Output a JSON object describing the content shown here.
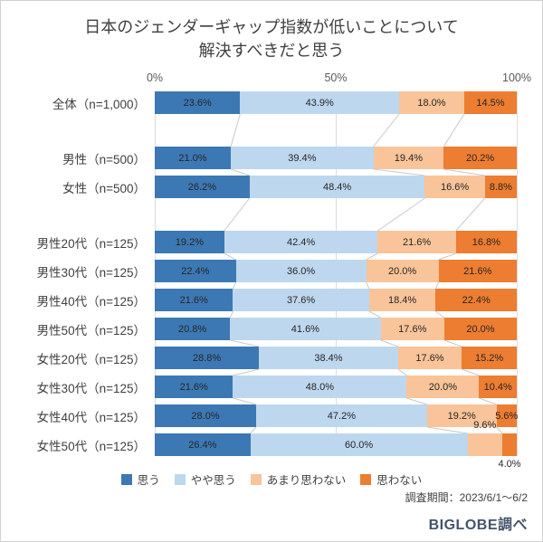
{
  "title": {
    "line1": "日本のジェンダーギャップ指数が低いことについて",
    "line2": "解決すべきだと思う"
  },
  "axis": {
    "ticks": [
      {
        "label": "0%",
        "pos": 0
      },
      {
        "label": "50%",
        "pos": 50
      },
      {
        "label": "100%",
        "pos": 100
      }
    ]
  },
  "chart_data": {
    "type": "bar",
    "stacked": true,
    "orientation": "horizontal",
    "xlim": [
      0,
      100
    ],
    "categories": [
      "全体（n=1,000）",
      "男性（n=500）",
      "女性（n=500）",
      "男性20代（n=125）",
      "男性30代（n=125）",
      "男性40代（n=125）",
      "男性50代（n=125）",
      "女性20代（n=125）",
      "女性30代（n=125）",
      "女性40代（n=125）",
      "女性50代（n=125）"
    ],
    "group_breaks": [
      1,
      3
    ],
    "series": [
      {
        "name": "思う",
        "color": "#3c78b4",
        "values": [
          23.6,
          21.0,
          26.2,
          19.2,
          22.4,
          21.6,
          20.8,
          28.8,
          21.6,
          28.0,
          26.4
        ]
      },
      {
        "name": "やや思う",
        "color": "#bdd7ee",
        "values": [
          43.9,
          39.4,
          48.4,
          42.4,
          36.0,
          37.6,
          41.6,
          38.4,
          48.0,
          47.2,
          60.0
        ]
      },
      {
        "name": "あまり思わない",
        "color": "#f9c499",
        "values": [
          18.0,
          19.4,
          16.6,
          21.6,
          20.0,
          18.4,
          17.6,
          17.6,
          20.0,
          19.2,
          9.6
        ]
      },
      {
        "name": "思わない",
        "color": "#ed7d31",
        "values": [
          14.5,
          20.2,
          8.8,
          16.8,
          21.6,
          22.4,
          20.0,
          15.2,
          10.4,
          5.6,
          4.0
        ]
      }
    ],
    "label_overrides": [
      {
        "row": 10,
        "series": 2,
        "pos": "above"
      },
      {
        "row": 10,
        "series": 3,
        "pos": "below"
      }
    ],
    "legend_position": "bottom",
    "grid": true
  },
  "footer": {
    "survey_period": "調査期間：2023/6/1～6/2",
    "source": "BIGLOBE調べ"
  }
}
